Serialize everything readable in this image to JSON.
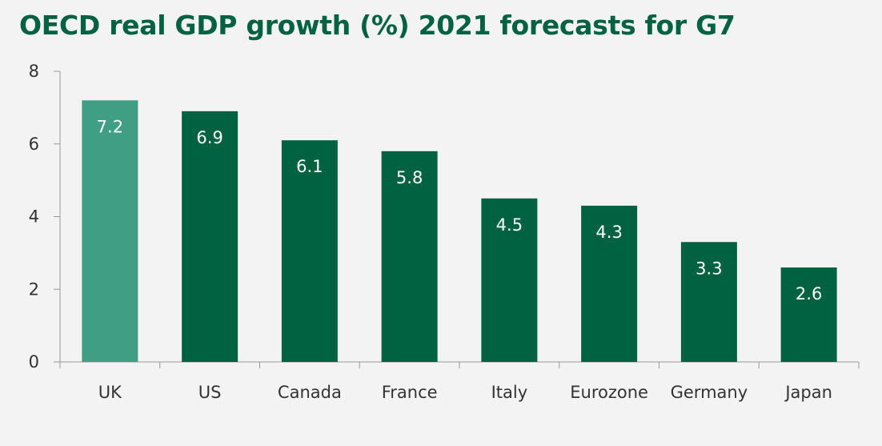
{
  "chart_data": {
    "type": "bar",
    "title": "OECD real GDP growth (%) 2021 forecasts for G7",
    "categories": [
      "UK",
      "US",
      "Canada",
      "France",
      "Italy",
      "Eurozone",
      "Germany",
      "Japan"
    ],
    "values": [
      7.2,
      6.9,
      6.1,
      5.8,
      4.5,
      4.3,
      3.3,
      2.6
    ],
    "value_labels": [
      "7.2",
      "6.9",
      "6.1",
      "5.8",
      "4.5",
      "4.3",
      "3.3",
      "2.6"
    ],
    "ylim": [
      0,
      8
    ],
    "yticks": [
      0,
      2,
      4,
      6,
      8
    ],
    "xlabel": "",
    "ylabel": "",
    "grid": false,
    "legend": "none",
    "colors": {
      "highlight": "#3f9e84",
      "bar": "#006241",
      "title": "#006241",
      "axis": "#999999",
      "text": "#333333",
      "value_text": "#ffffff",
      "background": "#f3f3f3"
    },
    "highlight_index": 0
  }
}
